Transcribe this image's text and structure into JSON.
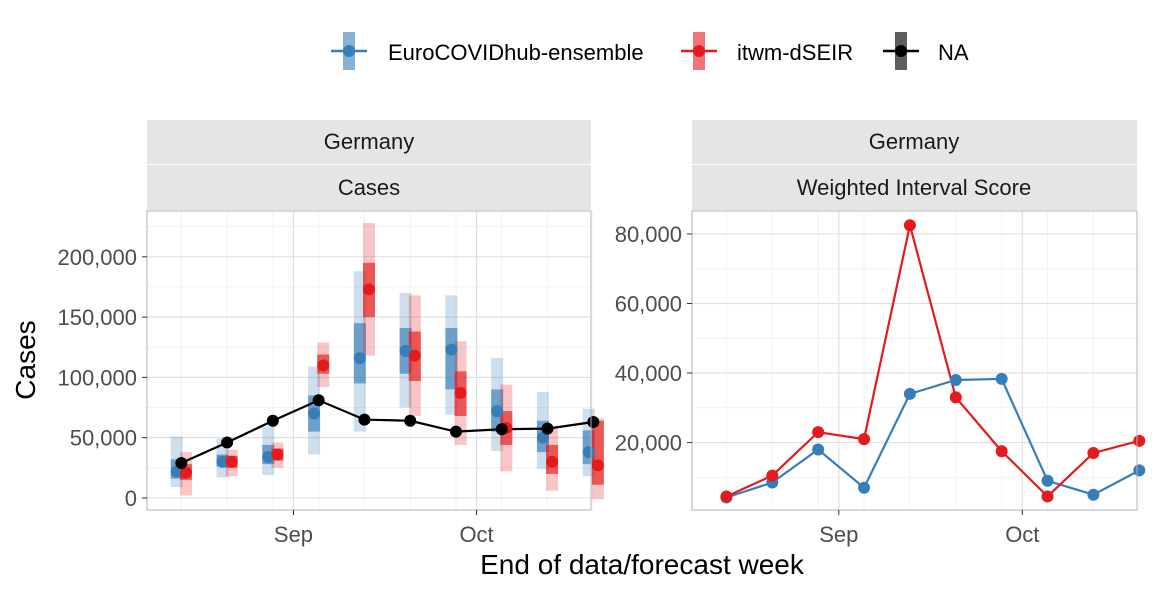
{
  "legend": [
    {
      "label": "EuroCOVIDhub-ensemble",
      "color": "#377EB8"
    },
    {
      "label": "itwm-dSEIR",
      "color": "#E41A1C"
    },
    {
      "label": "NA",
      "color": "#000000"
    }
  ],
  "axes": {
    "x_title": "End of data/forecast week",
    "y_title": "Cases"
  },
  "chart_data": [
    {
      "type": "line",
      "strip": {
        "region": "Germany",
        "metric": "Cases"
      },
      "x_ticks": [
        {
          "label": "Sep",
          "week": 2.45
        },
        {
          "label": "Oct",
          "week": 6.45
        }
      ],
      "y_ticks": [
        {
          "label": "0",
          "value": 0
        },
        {
          "label": "50,000",
          "value": 50000
        },
        {
          "label": "100,000",
          "value": 100000
        },
        {
          "label": "150,000",
          "value": 150000
        },
        {
          "label": "200,000",
          "value": 200000
        }
      ],
      "xlim": [
        -0.75,
        8.95
      ],
      "ylim": [
        -10000,
        238000
      ],
      "observed": {
        "name": "NA",
        "color": "#000000",
        "values": [
          29000,
          46000,
          64000,
          81000,
          65000,
          64000,
          55000,
          57000,
          57500,
          63000
        ]
      },
      "forecasts": [
        {
          "name": "EuroCOVIDhub-ensemble",
          "color": "#377EB8",
          "offset": -0.1,
          "median": [
            22000,
            30000,
            34000,
            70000,
            116000,
            122000,
            123000,
            72000,
            50000,
            38000
          ],
          "inner": [
            [
              16000,
              32000
            ],
            [
              26000,
              36000
            ],
            [
              28000,
              44000
            ],
            [
              55000,
              85000
            ],
            [
              95000,
              145000
            ],
            [
              103000,
              141000
            ],
            [
              90000,
              141000
            ],
            [
              55000,
              90000
            ],
            [
              38000,
              64000
            ],
            [
              28000,
              56000
            ]
          ],
          "outer": [
            [
              9000,
              51000
            ],
            [
              17000,
              49000
            ],
            [
              19000,
              59000
            ],
            [
              36000,
              109000
            ],
            [
              55000,
              188000
            ],
            [
              75000,
              170000
            ],
            [
              69000,
              168000
            ],
            [
              39000,
              116000
            ],
            [
              24000,
              88000
            ],
            [
              18000,
              74000
            ]
          ]
        },
        {
          "name": "itwm-dSEIR",
          "color": "#E41A1C",
          "offset": 0.1,
          "median": [
            21000,
            30000,
            36000,
            110000,
            173000,
            118000,
            87000,
            58000,
            30000,
            27000
          ],
          "inner": [
            [
              15000,
              28000
            ],
            [
              25000,
              35000
            ],
            [
              31000,
              41000
            ],
            [
              103000,
              119000
            ],
            [
              150000,
              195000
            ],
            [
              97000,
              138000
            ],
            [
              68000,
              105000
            ],
            [
              44000,
              72000
            ],
            [
              20000,
              44000
            ],
            [
              11000,
              64000
            ]
          ],
          "outer": [
            [
              2000,
              38000
            ],
            [
              18000,
              40000
            ],
            [
              25000,
              46000
            ],
            [
              92000,
              129000
            ],
            [
              118000,
              228000
            ],
            [
              68000,
              168000
            ],
            [
              44000,
              130000
            ],
            [
              22000,
              94000
            ],
            [
              6000,
              59000
            ],
            [
              -1000,
              66000
            ]
          ]
        }
      ]
    },
    {
      "type": "line",
      "strip": {
        "region": "Germany",
        "metric": "Weighted Interval Score"
      },
      "x_ticks": [
        {
          "label": "Sep",
          "week": 2.45
        },
        {
          "label": "Oct",
          "week": 6.45
        }
      ],
      "y_ticks": [
        {
          "label": "20,000",
          "value": 20000
        },
        {
          "label": "40,000",
          "value": 40000
        },
        {
          "label": "60,000",
          "value": 60000
        },
        {
          "label": "80,000",
          "value": 80000
        }
      ],
      "xlim": [
        -0.75,
        8.95
      ],
      "ylim": [
        600,
        86600
      ],
      "series": [
        {
          "name": "EuroCOVIDhub-ensemble",
          "color": "#377EB8",
          "values": [
            4200,
            8500,
            18000,
            7000,
            34000,
            38000,
            38300,
            9000,
            5000,
            12000
          ]
        },
        {
          "name": "itwm-dSEIR",
          "color": "#E41A1C",
          "values": [
            4500,
            10500,
            23000,
            21000,
            82500,
            33000,
            17500,
            4500,
            17000,
            20500
          ]
        }
      ]
    }
  ]
}
